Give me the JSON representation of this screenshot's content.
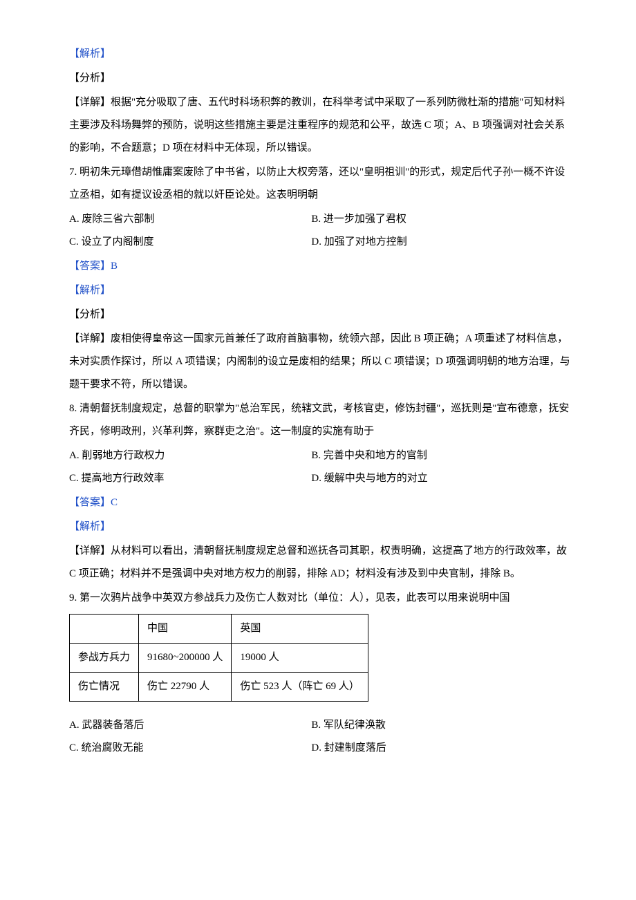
{
  "labels": {
    "jiexi": "【解析】",
    "fenxi": "【分析】",
    "daan": "【答案】"
  },
  "sec_top": {
    "detail": "【详解】根据\"充分吸取了唐、五代时科场积弊的教训，在科举考试中采取了一系列防微杜渐的措施\"可知材料主要涉及科场舞弊的预防，说明这些措施主要是注重程序的规范和公平，故选 C 项；A、B 项强调对社会关系的影响，不合题意；D 项在材料中无体现，所以错误。"
  },
  "q7": {
    "stem": "7. 明初朱元璋借胡惟庸案废除了中书省，以防止大权旁落，还以\"皇明祖训\"的形式，规定后代子孙一概不许设立丞相，如有提议设丞相的就以奸臣论处。这表明明朝",
    "A": "A. 废除三省六部制",
    "B": "B. 进一步加强了君权",
    "C": "C. 设立了内阁制度",
    "D": "D. 加强了对地方控制",
    "answer": "B",
    "detail": "【详解】废相使得皇帝这一国家元首兼任了政府首脑事物，统领六部，因此 B 项正确；A 项重述了材料信息，未对实质作探讨，所以 A 项错误；内阁制的设立是废相的结果；所以 C 项错误；D 项强调明朝的地方治理，与题干要求不符，所以错误。"
  },
  "q8": {
    "stem": "8. 清朝督抚制度规定，总督的职掌为\"总治军民，统辖文武，考核官吏，修饬封疆\"，巡抚则是\"宣布德意，抚安齐民，修明政刑，兴革利弊，察群吏之治\"。这一制度的实施有助于",
    "A": "A. 削弱地方行政权力",
    "B": "B. 完善中央和地方的官制",
    "C": "C. 提高地方行政效率",
    "D": "D. 缓解中央与地方的对立",
    "answer": "C",
    "detail": "【详解】从材料可以看出，清朝督抚制度规定总督和巡抚各司其职，权责明确，这提高了地方的行政效率，故 C 项正确；材料并不是强调中央对地方权力的削弱，排除 AD；材料没有涉及到中央官制，排除 B。"
  },
  "q9": {
    "stem": "9. 第一次鸦片战争中英双方参战兵力及伤亡人数对比（单位：人），见表，此表可以用来说明中国",
    "table": {
      "h1": "",
      "h2": "中国",
      "h3": "英国",
      "r1c1": "参战方兵力",
      "r1c2": "91680~200000 人",
      "r1c3": "19000 人",
      "r2c1": "伤亡情况",
      "r2c2": "伤亡 22790 人",
      "r2c3": "伤亡 523 人（阵亡 69 人）"
    },
    "A": "A. 武器装备落后",
    "B": "B. 军队纪律涣散",
    "C": "C. 统治腐败无能",
    "D": "D. 封建制度落后"
  }
}
